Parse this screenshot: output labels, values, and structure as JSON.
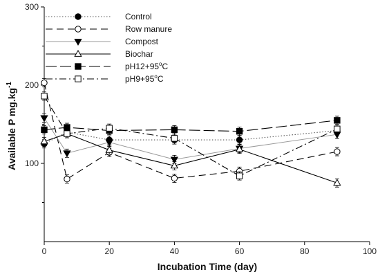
{
  "chart_data": {
    "type": "line",
    "title": "",
    "xlabel": "Incubation Time (day)",
    "ylabel": "Available P mg.kg",
    "ylabel_superscript": "-1",
    "xlim": [
      0,
      100
    ],
    "ylim": [
      0,
      300
    ],
    "xticks": [
      0,
      20,
      40,
      60,
      80,
      100
    ],
    "yticks": [
      100,
      200,
      300
    ],
    "grid": false,
    "legend_position": "top-right",
    "series": [
      {
        "name": "Control",
        "marker": "filled-circle",
        "dash": "dotted",
        "color": "#555555",
        "x": [
          0,
          7,
          20,
          40,
          60,
          90
        ],
        "y": [
          125,
          140,
          130,
          130,
          130,
          142
        ]
      },
      {
        "name": "Row manure",
        "marker": "open-circle",
        "dash": "long-dash",
        "color": "#000000",
        "x": [
          0,
          7,
          20,
          40,
          60,
          90
        ],
        "y": [
          203,
          80,
          114,
          81,
          90,
          115
        ]
      },
      {
        "name": "Compost",
        "marker": "filled-triangle-down",
        "dash": "solid-light",
        "color": "#999999",
        "x": [
          0,
          7,
          20,
          40,
          60,
          90
        ],
        "y": [
          158,
          113,
          127,
          105,
          119,
          137
        ]
      },
      {
        "name": "Biochar",
        "marker": "open-triangle-up",
        "dash": "solid",
        "color": "#000000",
        "x": [
          0,
          7,
          20,
          40,
          60,
          90
        ],
        "y": [
          128,
          138,
          117,
          97,
          118,
          75
        ]
      },
      {
        "name": "pH12+95°C",
        "marker": "filled-square",
        "dash": "dash-long",
        "color": "#000000",
        "x": [
          0,
          7,
          20,
          40,
          60,
          90
        ],
        "y": [
          143,
          146,
          142,
          143,
          141,
          155
        ]
      },
      {
        "name": "pH9+95°C",
        "marker": "open-square",
        "dash": "dash-dot",
        "color": "#000000",
        "x": [
          0,
          7,
          20,
          40,
          60,
          90
        ],
        "y": [
          186,
          138,
          145,
          132,
          84,
          144
        ]
      }
    ],
    "legend": {
      "control": "Control",
      "row_manure": "Row manure",
      "compost": "Compost",
      "biochar": "Biochar",
      "ph12_main": "pH12+95",
      "ph9_main": "pH9+95",
      "degree_sup": "o",
      "celsius": "C"
    }
  }
}
